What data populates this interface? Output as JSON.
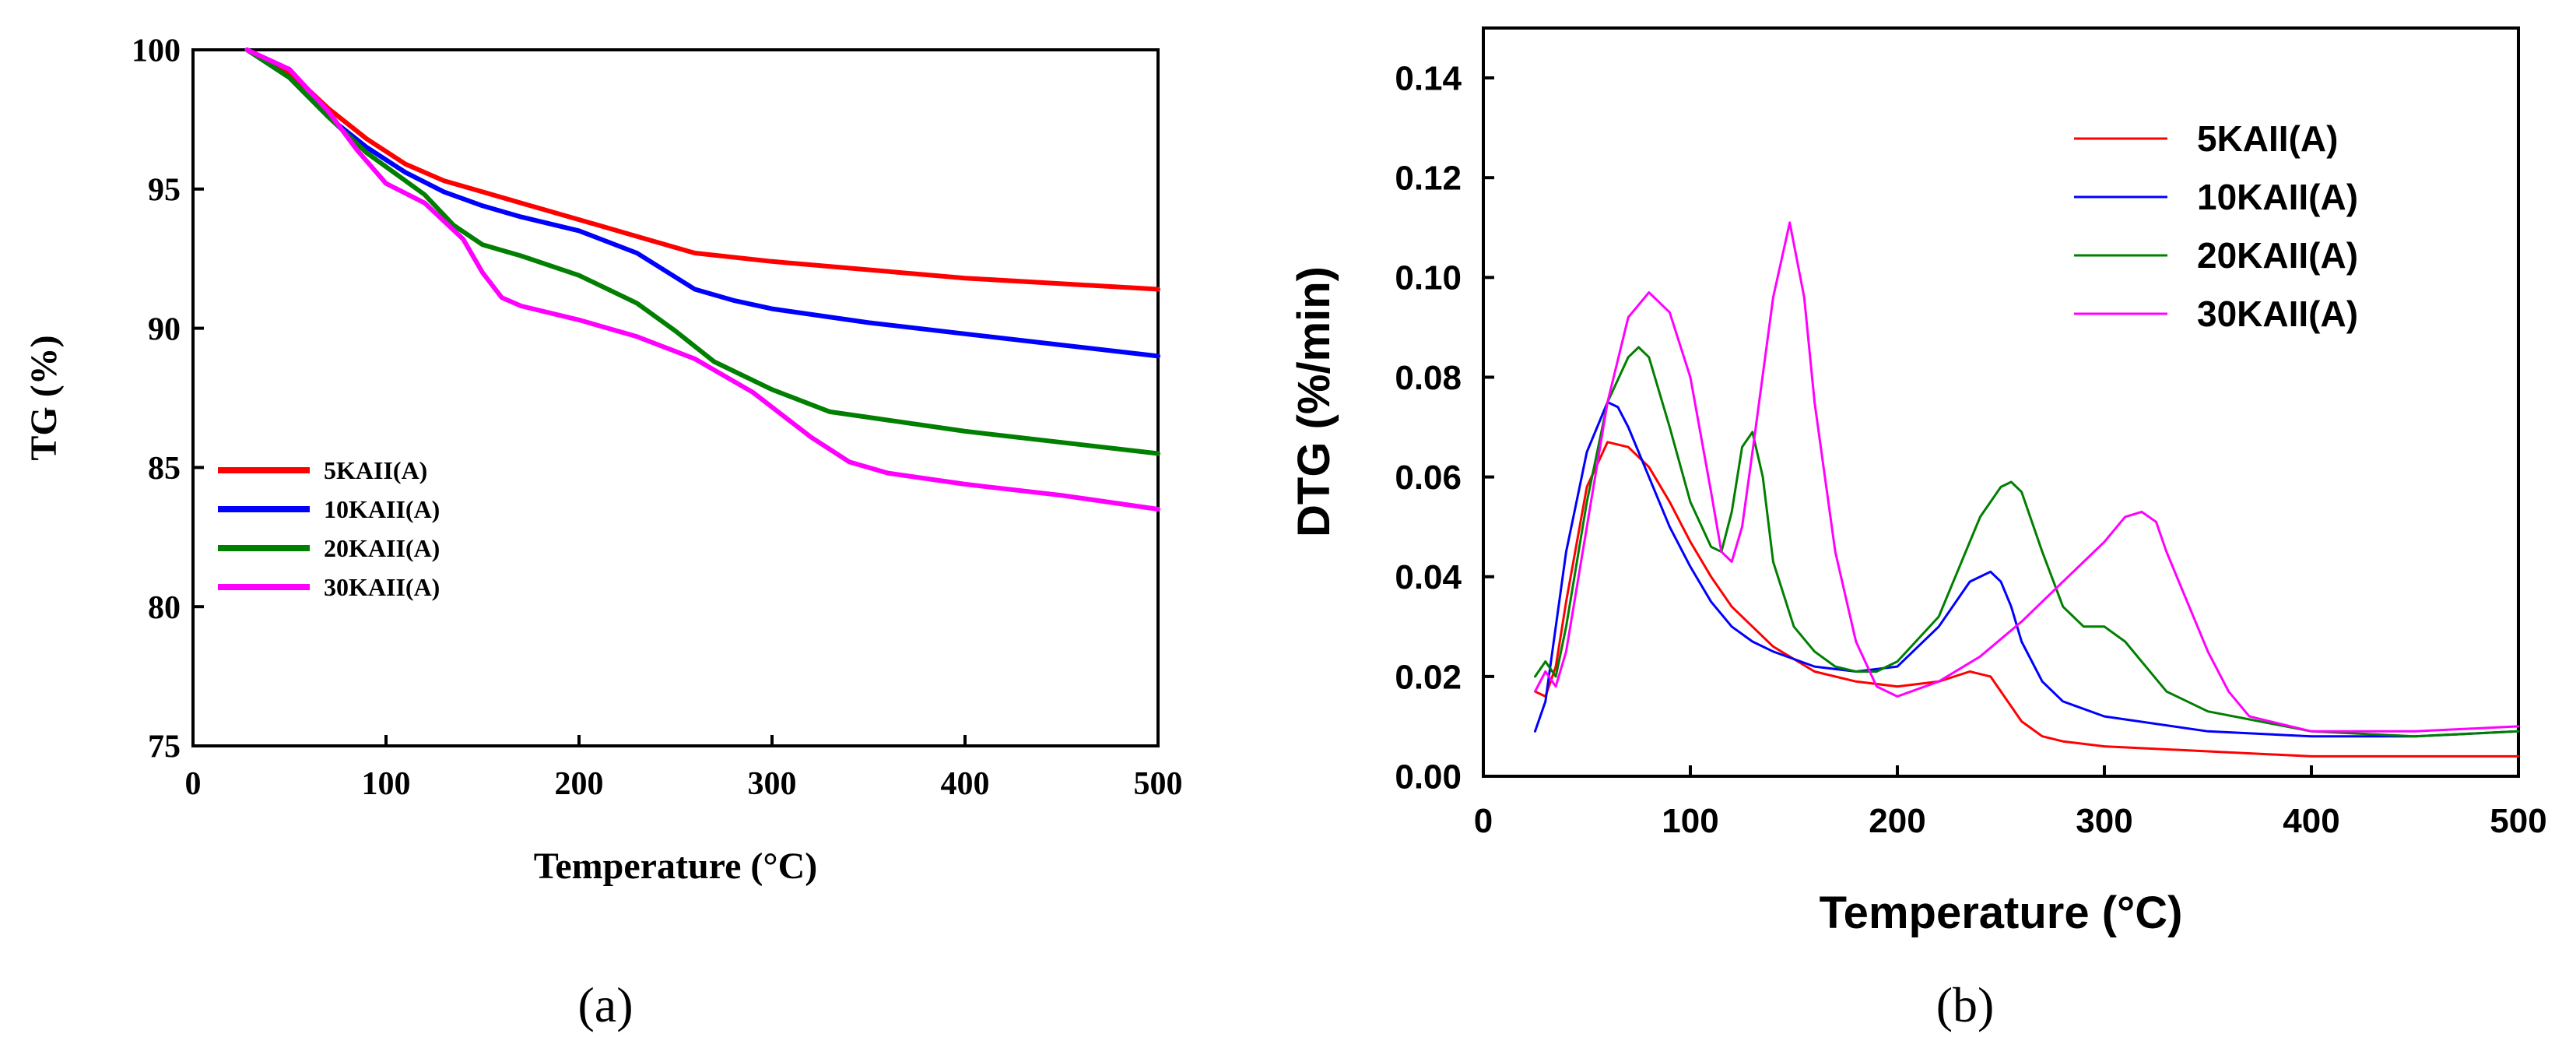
{
  "colors": {
    "5KAII(A)": "#ff0000",
    "10KAII(A)": "#0000ff",
    "20KAII(A)": "#007f00",
    "30KAII(A)": "#ff00ff",
    "axis": "#000000",
    "background": "#ffffff"
  },
  "chart_data": [
    {
      "type": "line",
      "panel_label": "(a)",
      "xlabel": "Temperature (°C)",
      "ylabel": "TG (%)",
      "xlim": [
        0,
        500
      ],
      "ylim": [
        75,
        100
      ],
      "xticks": [
        0,
        100,
        200,
        300,
        400,
        500
      ],
      "yticks": [
        75,
        80,
        85,
        90,
        95,
        100
      ],
      "grid": false,
      "legend_position": "bottom-left",
      "series": [
        {
          "name": "5KAII(A)",
          "x": [
            28,
            50,
            70,
            90,
            110,
            130,
            150,
            170,
            200,
            230,
            260,
            300,
            350,
            400,
            450,
            500
          ],
          "y": [
            100,
            99.2,
            97.9,
            96.8,
            95.9,
            95.3,
            94.9,
            94.5,
            93.9,
            93.3,
            92.7,
            92.4,
            92.1,
            91.8,
            91.6,
            91.4
          ]
        },
        {
          "name": "10KAII(A)",
          "x": [
            28,
            50,
            70,
            90,
            110,
            130,
            150,
            170,
            200,
            230,
            260,
            280,
            300,
            350,
            400,
            450,
            500
          ],
          "y": [
            100,
            99.0,
            97.6,
            96.5,
            95.6,
            94.9,
            94.4,
            94.0,
            93.5,
            92.7,
            91.4,
            91.0,
            90.7,
            90.2,
            89.8,
            89.4,
            89.0
          ]
        },
        {
          "name": "20KAII(A)",
          "x": [
            28,
            50,
            70,
            90,
            100,
            120,
            135,
            150,
            170,
            200,
            230,
            250,
            270,
            300,
            330,
            350,
            400,
            450,
            500
          ],
          "y": [
            100,
            99.0,
            97.6,
            96.3,
            95.8,
            94.8,
            93.7,
            93.0,
            92.6,
            91.9,
            90.9,
            89.9,
            88.8,
            87.8,
            87.0,
            86.8,
            86.3,
            85.9,
            85.5
          ]
        },
        {
          "name": "30KAII(A)",
          "x": [
            28,
            50,
            70,
            85,
            100,
            120,
            140,
            150,
            160,
            170,
            200,
            230,
            260,
            290,
            320,
            340,
            360,
            400,
            450,
            500
          ],
          "y": [
            100,
            99.3,
            97.8,
            96.4,
            95.2,
            94.5,
            93.2,
            92.0,
            91.1,
            90.8,
            90.3,
            89.7,
            88.9,
            87.7,
            86.1,
            85.2,
            84.8,
            84.4,
            84.0,
            83.5
          ]
        }
      ]
    },
    {
      "type": "line",
      "panel_label": "(b)",
      "xlabel": "Temperature (°C)",
      "ylabel": "DTG (%/min)",
      "xlim": [
        0,
        500
      ],
      "ylim": [
        0,
        0.15
      ],
      "xticks": [
        0,
        100,
        200,
        300,
        400,
        500
      ],
      "yticks": [
        "0.00",
        "0.02",
        "0.04",
        "0.06",
        "0.08",
        "0.10",
        "0.12",
        "0.14"
      ],
      "grid": false,
      "legend_position": "top-right",
      "series": [
        {
          "name": "5KAII(A)",
          "x": [
            25,
            30,
            35,
            40,
            50,
            60,
            70,
            80,
            90,
            100,
            110,
            120,
            130,
            140,
            160,
            180,
            200,
            220,
            235,
            245,
            250,
            260,
            270,
            280,
            300,
            350,
            400,
            450,
            500
          ],
          "y": [
            0.017,
            0.016,
            0.022,
            0.035,
            0.058,
            0.067,
            0.066,
            0.062,
            0.055,
            0.047,
            0.04,
            0.034,
            0.03,
            0.026,
            0.021,
            0.019,
            0.018,
            0.019,
            0.021,
            0.02,
            0.017,
            0.011,
            0.008,
            0.007,
            0.006,
            0.005,
            0.004,
            0.004,
            0.004
          ]
        },
        {
          "name": "10KAII(A)",
          "x": [
            25,
            30,
            35,
            40,
            50,
            60,
            65,
            70,
            80,
            90,
            100,
            110,
            120,
            130,
            140,
            160,
            180,
            200,
            220,
            235,
            245,
            250,
            255,
            260,
            270,
            280,
            300,
            350,
            400,
            450,
            500
          ],
          "y": [
            0.009,
            0.015,
            0.03,
            0.045,
            0.065,
            0.075,
            0.074,
            0.07,
            0.06,
            0.05,
            0.042,
            0.035,
            0.03,
            0.027,
            0.025,
            0.022,
            0.021,
            0.022,
            0.03,
            0.039,
            0.041,
            0.039,
            0.034,
            0.027,
            0.019,
            0.015,
            0.012,
            0.009,
            0.008,
            0.008,
            0.009
          ]
        },
        {
          "name": "20KAII(A)",
          "x": [
            25,
            30,
            35,
            40,
            50,
            60,
            70,
            75,
            80,
            90,
            100,
            110,
            115,
            120,
            125,
            130,
            135,
            140,
            150,
            160,
            170,
            180,
            190,
            200,
            220,
            240,
            250,
            255,
            260,
            270,
            280,
            290,
            300,
            310,
            320,
            330,
            350,
            400,
            450,
            500
          ],
          "y": [
            0.02,
            0.023,
            0.02,
            0.03,
            0.055,
            0.075,
            0.084,
            0.086,
            0.084,
            0.07,
            0.055,
            0.046,
            0.045,
            0.053,
            0.066,
            0.069,
            0.06,
            0.043,
            0.03,
            0.025,
            0.022,
            0.021,
            0.021,
            0.023,
            0.032,
            0.052,
            0.058,
            0.059,
            0.057,
            0.045,
            0.034,
            0.03,
            0.03,
            0.027,
            0.022,
            0.017,
            0.013,
            0.009,
            0.008,
            0.009
          ]
        },
        {
          "name": "30KAII(A)",
          "x": [
            25,
            30,
            35,
            40,
            50,
            60,
            70,
            80,
            90,
            100,
            110,
            115,
            120,
            125,
            130,
            140,
            148,
            155,
            160,
            170,
            180,
            190,
            200,
            220,
            240,
            260,
            280,
            300,
            310,
            318,
            325,
            330,
            340,
            350,
            360,
            370,
            400,
            450,
            500
          ],
          "y": [
            0.017,
            0.021,
            0.018,
            0.025,
            0.05,
            0.075,
            0.092,
            0.097,
            0.093,
            0.08,
            0.057,
            0.045,
            0.043,
            0.05,
            0.065,
            0.096,
            0.111,
            0.096,
            0.075,
            0.045,
            0.027,
            0.018,
            0.016,
            0.019,
            0.024,
            0.031,
            0.039,
            0.047,
            0.052,
            0.053,
            0.051,
            0.045,
            0.035,
            0.025,
            0.017,
            0.012,
            0.009,
            0.009,
            0.01
          ]
        }
      ]
    }
  ]
}
